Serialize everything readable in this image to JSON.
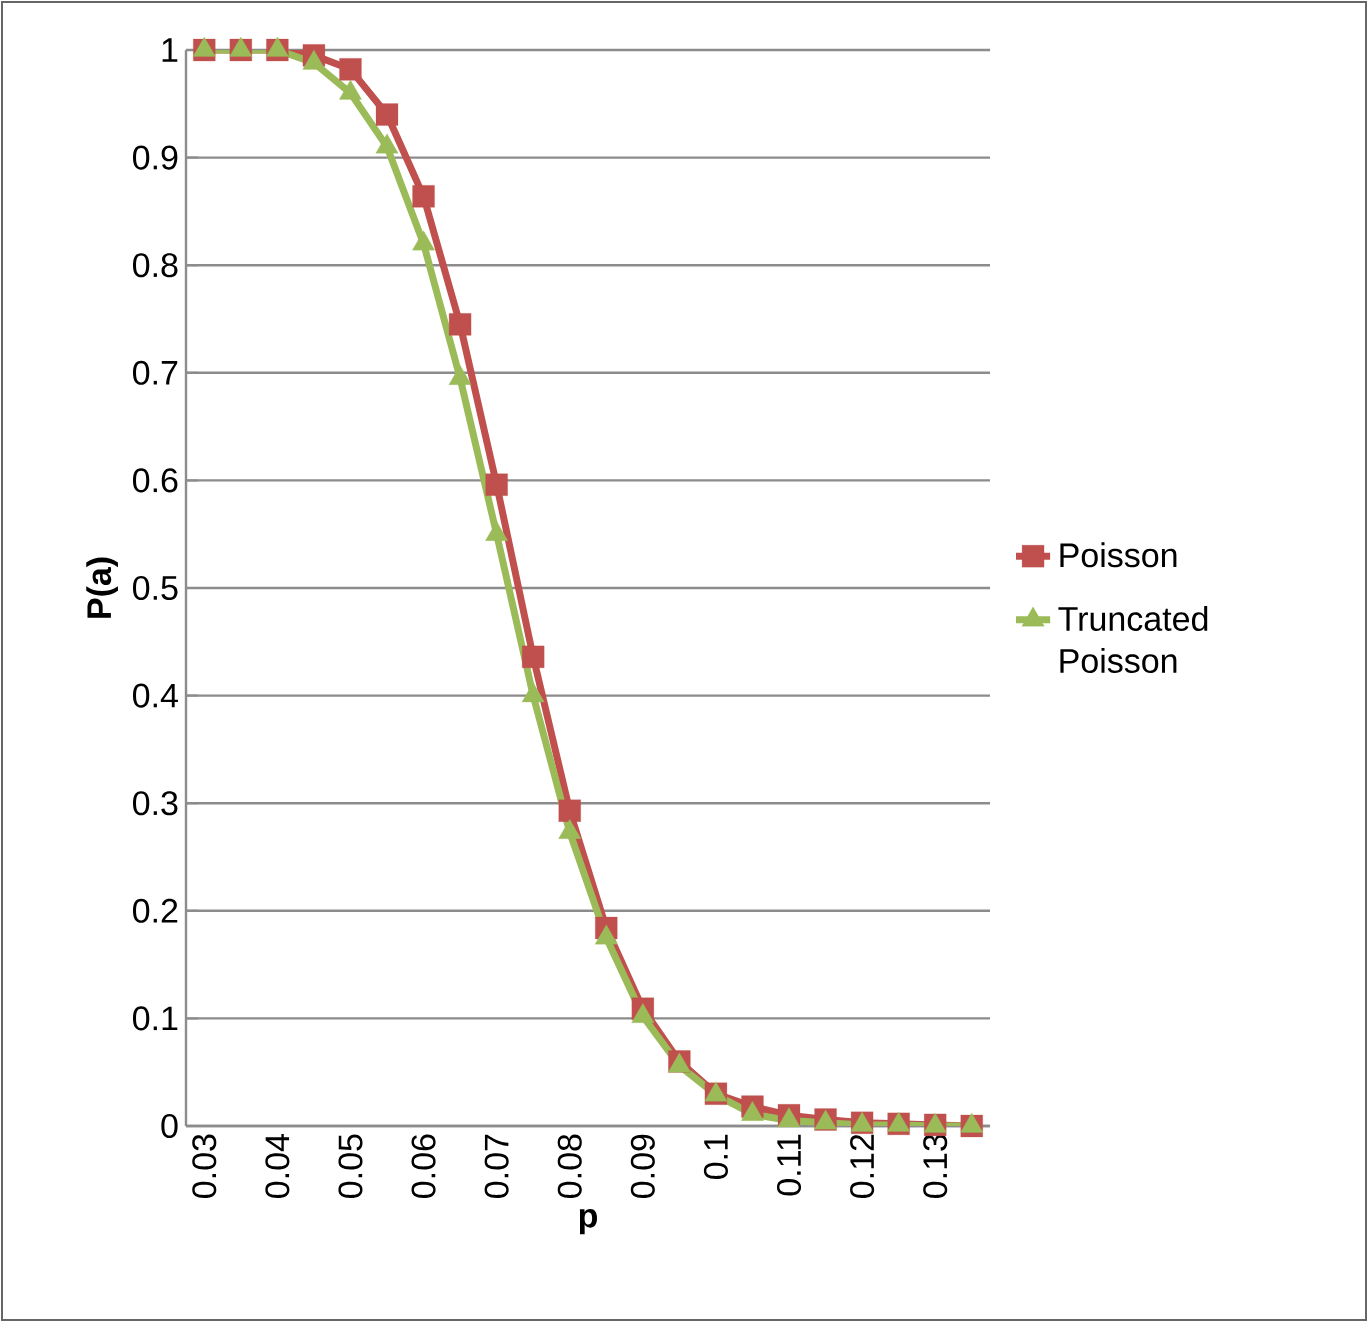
{
  "chart_data": {
    "type": "line",
    "xlabel": "p",
    "ylabel": "P(a)",
    "categories": [
      "0.03",
      null,
      "0.04",
      null,
      "0.05",
      null,
      "0.06",
      null,
      "0.07",
      null,
      "0.08",
      null,
      "0.09",
      null,
      "0.1",
      null,
      "0.11",
      null,
      "0.12",
      null,
      "0.13",
      null
    ],
    "series": [
      {
        "name": "Poisson",
        "color": "#c0504d",
        "marker": "square",
        "values": [
          1,
          1,
          1,
          0.995,
          0.982,
          0.94,
          0.864,
          0.745,
          0.596,
          0.436,
          0.293,
          0.184,
          0.109,
          0.06,
          0.03,
          0.018,
          0.01,
          0.006,
          0.003,
          0.002,
          0.001,
          0
        ]
      },
      {
        "name": "Truncated Poisson",
        "color": "#9bbb59",
        "marker": "triangle",
        "values": [
          1,
          1,
          1,
          0.988,
          0.96,
          0.91,
          0.82,
          0.695,
          0.55,
          0.4,
          0.273,
          0.175,
          0.102,
          0.056,
          0.029,
          0.011,
          0.005,
          0.003,
          0.001,
          0.001,
          0,
          0
        ]
      }
    ],
    "ylim": [
      0,
      1
    ],
    "yticks": [
      0,
      0.1,
      0.2,
      0.3,
      0.4,
      0.5,
      0.6,
      0.7,
      0.8,
      0.9,
      1
    ],
    "grid": "y",
    "legend": "right",
    "line_style": "solid"
  }
}
